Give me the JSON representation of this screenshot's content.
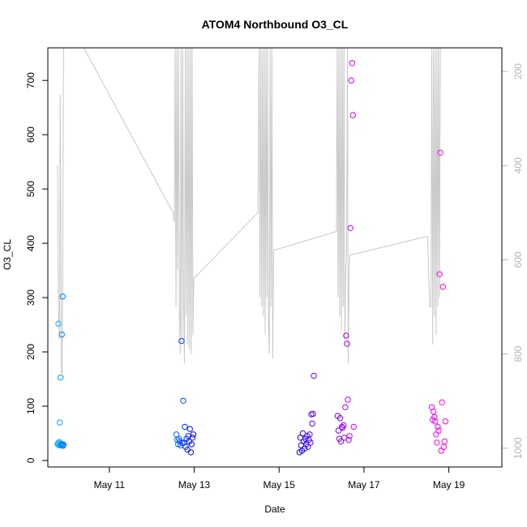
{
  "chart_data": {
    "type": "scatter",
    "title": "ATOM4 Northbound O3_CL",
    "xlabel": "Date",
    "ylabel": "O3_CL",
    "x_unit": "days since May 9 00:00",
    "xlim": [
      0.55,
      11.25
    ],
    "ylim": [
      -12,
      760
    ],
    "x_ticks": [
      {
        "value": 2.0,
        "label": "May 11"
      },
      {
        "value": 4.0,
        "label": "May 13"
      },
      {
        "value": 6.0,
        "label": "May 15"
      },
      {
        "value": 8.0,
        "label": "May 17"
      },
      {
        "value": 10.0,
        "label": "May 19"
      }
    ],
    "y_ticks": [
      0,
      100,
      200,
      300,
      400,
      500,
      600,
      700
    ],
    "secondary_axis": {
      "side": "right",
      "description": "altitude trace (inverted axis)",
      "color": "#b3b3b3",
      "ticks": [
        200,
        400,
        600,
        800,
        1000
      ],
      "range_top": 150,
      "range_bottom": 1040
    },
    "point_color_start": "#00bfff",
    "point_color_end": "#ff00c8",
    "line_color": "#c8c8c8",
    "series": [
      {
        "name": "O3_CL",
        "points": [
          [
            0.78,
            30
          ],
          [
            0.79,
            32
          ],
          [
            0.8,
            252
          ],
          [
            0.81,
            28
          ],
          [
            0.82,
            34
          ],
          [
            0.83,
            70
          ],
          [
            0.84,
            29
          ],
          [
            0.85,
            153
          ],
          [
            0.86,
            31
          ],
          [
            0.87,
            28
          ],
          [
            0.88,
            232
          ],
          [
            0.89,
            30
          ],
          [
            0.9,
            302
          ],
          [
            0.91,
            27
          ],
          [
            0.92,
            29
          ],
          [
            3.58,
            48
          ],
          [
            3.6,
            38
          ],
          [
            3.62,
            30
          ],
          [
            3.64,
            40
          ],
          [
            3.66,
            35
          ],
          [
            3.68,
            28
          ],
          [
            3.7,
            220
          ],
          [
            3.72,
            32
          ],
          [
            3.74,
            110
          ],
          [
            3.76,
            33
          ],
          [
            3.78,
            62
          ],
          [
            3.8,
            25
          ],
          [
            3.82,
            40
          ],
          [
            3.84,
            20
          ],
          [
            3.86,
            45
          ],
          [
            3.88,
            35
          ],
          [
            3.9,
            58
          ],
          [
            3.92,
            15
          ],
          [
            3.94,
            30
          ],
          [
            3.96,
            42
          ],
          [
            3.98,
            48
          ],
          [
            6.48,
            15
          ],
          [
            6.5,
            42
          ],
          [
            6.52,
            28
          ],
          [
            6.54,
            18
          ],
          [
            6.56,
            50
          ],
          [
            6.58,
            35
          ],
          [
            6.6,
            22
          ],
          [
            6.62,
            40
          ],
          [
            6.64,
            30
          ],
          [
            6.66,
            45
          ],
          [
            6.68,
            25
          ],
          [
            6.7,
            38
          ],
          [
            6.72,
            48
          ],
          [
            6.74,
            33
          ],
          [
            6.76,
            85
          ],
          [
            6.78,
            68
          ],
          [
            6.8,
            86
          ],
          [
            6.82,
            156
          ],
          [
            7.38,
            82
          ],
          [
            7.4,
            55
          ],
          [
            7.42,
            40
          ],
          [
            7.44,
            78
          ],
          [
            7.46,
            35
          ],
          [
            7.48,
            62
          ],
          [
            7.5,
            60
          ],
          [
            7.52,
            65
          ],
          [
            7.54,
            42
          ],
          [
            7.56,
            98
          ],
          [
            7.58,
            230
          ],
          [
            7.6,
            215
          ],
          [
            7.62,
            112
          ],
          [
            7.64,
            38
          ],
          [
            7.66,
            45
          ],
          [
            7.68,
            428
          ],
          [
            7.7,
            700
          ],
          [
            7.72,
            732
          ],
          [
            7.74,
            636
          ],
          [
            7.76,
            62
          ],
          [
            9.6,
            98
          ],
          [
            9.62,
            75
          ],
          [
            9.64,
            90
          ],
          [
            9.66,
            80
          ],
          [
            9.68,
            72
          ],
          [
            9.7,
            48
          ],
          [
            9.72,
            33
          ],
          [
            9.74,
            62
          ],
          [
            9.76,
            55
          ],
          [
            9.78,
            343
          ],
          [
            9.8,
            567
          ],
          [
            9.82,
            18
          ],
          [
            9.84,
            107
          ],
          [
            9.86,
            320
          ],
          [
            9.88,
            25
          ],
          [
            9.9,
            35
          ],
          [
            9.92,
            72
          ]
        ]
      },
      {
        "name": "Altitude",
        "axis": "secondary",
        "points": [
          [
            0.78,
            400
          ],
          [
            0.8,
            700
          ],
          [
            0.82,
            770
          ],
          [
            0.83,
            650
          ],
          [
            0.84,
            250
          ],
          [
            0.86,
            620
          ],
          [
            0.87,
            840
          ],
          [
            0.89,
            840
          ],
          [
            0.9,
            640
          ],
          [
            0.92,
            150
          ],
          [
            1.4,
            150
          ],
          [
            3.5,
            500
          ],
          [
            3.53,
            520
          ],
          [
            3.55,
            150
          ],
          [
            3.57,
            700
          ],
          [
            3.59,
            150
          ],
          [
            3.61,
            620
          ],
          [
            3.63,
            150
          ],
          [
            3.65,
            700
          ],
          [
            3.67,
            800
          ],
          [
            3.69,
            150
          ],
          [
            3.71,
            780
          ],
          [
            3.73,
            150
          ],
          [
            3.75,
            700
          ],
          [
            3.77,
            820
          ],
          [
            3.79,
            150
          ],
          [
            3.81,
            720
          ],
          [
            3.83,
            150
          ],
          [
            3.85,
            780
          ],
          [
            3.87,
            150
          ],
          [
            3.89,
            790
          ],
          [
            3.91,
            150
          ],
          [
            3.93,
            800
          ],
          [
            3.95,
            150
          ],
          [
            3.97,
            760
          ],
          [
            3.99,
            640
          ],
          [
            5.5,
            500
          ],
          [
            5.53,
            150
          ],
          [
            5.55,
            680
          ],
          [
            5.57,
            150
          ],
          [
            5.59,
            700
          ],
          [
            5.61,
            150
          ],
          [
            5.63,
            720
          ],
          [
            5.65,
            150
          ],
          [
            5.67,
            760
          ],
          [
            5.69,
            150
          ],
          [
            5.71,
            680
          ],
          [
            5.73,
            150
          ],
          [
            5.75,
            730
          ],
          [
            5.77,
            800
          ],
          [
            5.79,
            150
          ],
          [
            5.81,
            700
          ],
          [
            5.83,
            150
          ],
          [
            5.85,
            810
          ],
          [
            5.87,
            580
          ],
          [
            7.35,
            540
          ],
          [
            7.37,
            150
          ],
          [
            7.39,
            680
          ],
          [
            7.41,
            150
          ],
          [
            7.43,
            720
          ],
          [
            7.45,
            150
          ],
          [
            7.47,
            750
          ],
          [
            7.49,
            150
          ],
          [
            7.51,
            700
          ],
          [
            7.53,
            150
          ],
          [
            7.55,
            780
          ],
          [
            7.57,
            620
          ],
          [
            7.59,
            600
          ],
          [
            7.61,
            150
          ],
          [
            7.63,
            820
          ],
          [
            7.65,
            620
          ],
          [
            7.67,
            590
          ],
          [
            9.5,
            550
          ],
          [
            9.55,
            700
          ],
          [
            9.58,
            700
          ],
          [
            9.6,
            150
          ],
          [
            9.62,
            780
          ],
          [
            9.64,
            150
          ],
          [
            9.66,
            720
          ],
          [
            9.68,
            150
          ],
          [
            9.7,
            760
          ],
          [
            9.72,
            150
          ],
          [
            9.74,
            700
          ],
          [
            9.76,
            150
          ],
          [
            9.78,
            680
          ],
          [
            9.8,
            150
          ]
        ]
      }
    ]
  }
}
